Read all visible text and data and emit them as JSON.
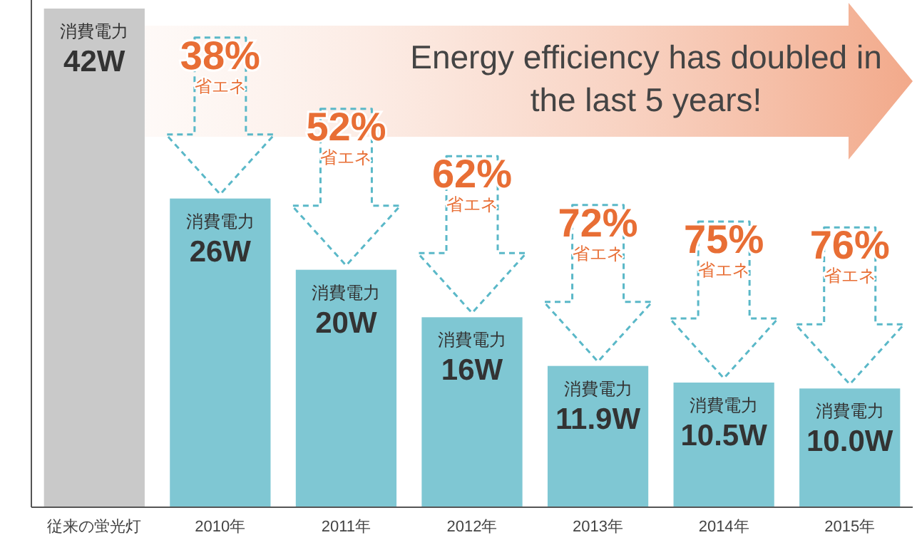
{
  "chart_data": {
    "type": "bar",
    "categories": [
      "従来の蛍光灯",
      "2010年",
      "2011年",
      "2012年",
      "2013年",
      "2014年",
      "2015年"
    ],
    "values": [
      42,
      26,
      20,
      16,
      11.9,
      10.5,
      10.0
    ],
    "colors": [
      "#c9c9c9",
      "#7fc7d3",
      "#7fc7d3",
      "#7fc7d3",
      "#7fc7d3",
      "#7fc7d3",
      "#7fc7d3"
    ],
    "value_labels": [
      "消費電力\n42W",
      "消費電力\n26W",
      "消費電力\n20W",
      "消費電力\n16W",
      "消費電力\n11.9W",
      "消費電力\n10.5W",
      "消費電力\n10.0W"
    ],
    "annotations": [
      {
        "text": "38%\n省エネ",
        "x": "2010年",
        "y": 26
      },
      {
        "text": "52%\n省エネ",
        "x": "2011年",
        "y": 20
      },
      {
        "text": "62%\n省エネ",
        "x": "2012年",
        "y": 16
      },
      {
        "text": "72%\n省エネ",
        "x": "2013年",
        "y": 11.9
      },
      {
        "text": "75%\n省エネ",
        "x": "2014年",
        "y": 10.5
      },
      {
        "text": "76%\n省エネ",
        "x": "2015年",
        "y": 10.0
      },
      "Energy efficiency has doubled in the last 5 years!"
    ]
  }
}
